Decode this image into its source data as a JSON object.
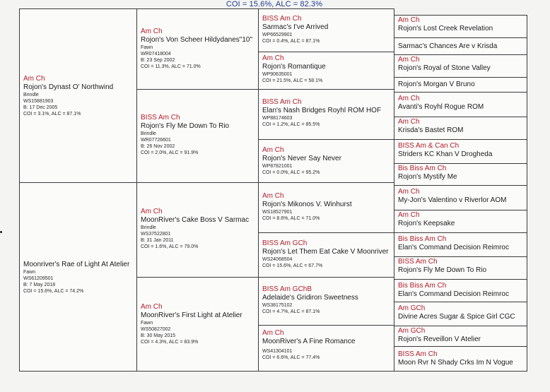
{
  "header": {
    "coi_line": "COI = 15.6%, ALC = 82.3%"
  },
  "gen1": [
    {
      "title": "Am Ch",
      "name": "Rojon's Dynast O' Northwind",
      "color": "Brindle",
      "reg": "WS15881903",
      "birth": "B: 17 Dec 2005",
      "coi": "COI = 3.1%, ALC = 87.1%"
    },
    {
      "title": "",
      "name": "Moonriver's Rae of Light At Atelier",
      "color": "Fawn",
      "reg": "WS61209501",
      "birth": "B: 7 May 2018",
      "coi": "COI = 15.6%, ALC = 74.2%"
    }
  ],
  "gen2": [
    {
      "title": "Am Ch",
      "name": "Rojon's Von Scheer Hildydanes\"10\"",
      "color": "Fawn",
      "reg": "WR07418004",
      "birth": "B: 23 Sep 2002",
      "coi": "COI = 11.3%, ALC = 71.0%"
    },
    {
      "title": "BISS Am Ch",
      "name": "Rojon's Fly Me Down To Rio",
      "color": "Brindle",
      "reg": "WR07726601",
      "birth": "B: 26 Nov 2002",
      "coi": "COI = 2.0%, ALC = 91.9%"
    },
    {
      "title": "Am Ch",
      "name": "MoonRiver's Cake Boss V Sarmac",
      "color": "Brindle",
      "reg": "WS37522801",
      "birth": "B: 31 Jan 2011",
      "coi": "COI = 1.6%, ALC = 79.0%"
    },
    {
      "title": "Am Ch",
      "name": "MoonRiver's First Light at Atelier",
      "color": "Fawn",
      "reg": "WS50827002",
      "birth": "B: 30 May 2015",
      "coi": "COI = 4.3%, ALC = 83.9%"
    }
  ],
  "gen3": [
    {
      "title": "BISS Am Ch",
      "name": "Sarmac's I've Arrived",
      "reg": "WP66529901",
      "coi": "COI = 0.4%, ALC = 87.1%"
    },
    {
      "title": "Am Ch",
      "name": "Rojon's Romantique",
      "reg": "WP90635001",
      "coi": "COI = 21.5%, ALC = 58.1%"
    },
    {
      "title": "BISS Am Ch",
      "name": "Elan's Nash Bridges Royhl ROM HOF",
      "reg": "WP88174603",
      "coi": "COI = 1.2%, ALC = 85.5%"
    },
    {
      "title": "Am Ch",
      "name": "Rojon's Never Say Never",
      "reg": "WP87821001",
      "coi": "COI = 0.0%, ALC = 95.2%"
    },
    {
      "title": "Am Ch",
      "name": "Rojon's Mikonos V. Winhurst",
      "reg": "WS18527901",
      "coi": "COI = 8.6%, ALC = 71.0%"
    },
    {
      "title": "BISS Am GCh",
      "name": "Rojon's Let Them Eat Cake V Moonriver",
      "reg": "WS24068504",
      "coi": "COI = 15.6%, ALC = 67.7%"
    },
    {
      "title": "BISS Am GChB",
      "name": "Adelaide's Gridiron Sweetness",
      "reg": "WS38175102",
      "coi": "COI = 4.7%, ALC = 87.1%"
    },
    {
      "title": "Am Ch",
      "name": "MoonRiver's A Fine Romance",
      "reg": "WS41304101",
      "coi": "COI = 6.6%, ALC = 77.4%"
    }
  ],
  "gen4": [
    {
      "title": "Am Ch",
      "name": "Rojon's Lost Creek Revelation"
    },
    {
      "title": "",
      "name": "Sarmac's Chances Are v Krisda"
    },
    {
      "title": "Am Ch",
      "name": "Rojon's Royal of Stone Valley"
    },
    {
      "title": "",
      "name": "Rojon's Morgan V Bruno"
    },
    {
      "title": "Am Ch",
      "name": "Avanti's Royhl Rogue ROM"
    },
    {
      "title": "Am Ch",
      "name": "Krisda's Bastet ROM"
    },
    {
      "title": "BISS Am & Can Ch",
      "name": "Striders KC Khan V Drogheda"
    },
    {
      "title": "Bis Biss Am Ch",
      "name": "Rojon's Mystify Me"
    },
    {
      "title": "Am Ch",
      "name": "My-Jon's Valentino v Riverlor AOM"
    },
    {
      "title": "Am Ch",
      "name": "Rojon's Keepsake"
    },
    {
      "title": "Bis Biss Am Ch",
      "name": "Elan's Command Decision Reimroc"
    },
    {
      "title": "BISS Am Ch",
      "name": "Rojon's Fly Me Down To Rio"
    },
    {
      "title": "Bis Biss Am Ch",
      "name": "Elan's Command Decision Reimroc"
    },
    {
      "title": "Am GCh",
      "name": "Divine Acres Sugar & Spice Girl CGC"
    },
    {
      "title": "Am GCh",
      "name": "Rojon's Reveillon V Atelier"
    },
    {
      "title": "BISS Am Ch",
      "name": "Moon Rvr N Shady Crks Im N Vogue"
    }
  ]
}
